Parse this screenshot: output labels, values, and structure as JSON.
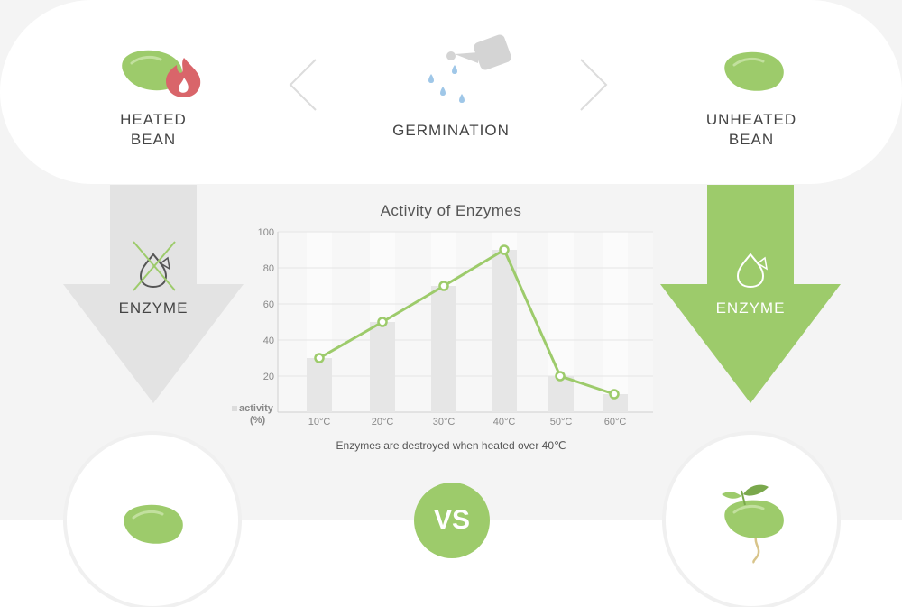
{
  "top": {
    "heated_label": [
      "HEATED",
      "BEAN"
    ],
    "process_label": "GERMINATION",
    "unheated_label": [
      "UNHEATED",
      "BEAN"
    ]
  },
  "left_arrow": {
    "label": "ENZYME"
  },
  "right_arrow": {
    "label": "ENZYME"
  },
  "vs_label": "VS",
  "colors": {
    "green": "#9dcb6b",
    "gray_arrow": "#e3e3e3",
    "flame": "#d9656a",
    "drop": "#9fc7e8"
  },
  "icons": [
    "heated-bean-icon",
    "flame-icon",
    "watering-can-icon",
    "water-drop-icon",
    "bean-icon",
    "enzyme-icon",
    "cross-icon",
    "sprout-icon"
  ],
  "chart_data": {
    "type": "bar+line",
    "title": "Activity of Enzymes",
    "ylabel": "activity (%)",
    "categories": [
      "10°C",
      "20°C",
      "30°C",
      "40°C",
      "50°C",
      "60°C"
    ],
    "values": [
      30,
      50,
      70,
      90,
      20,
      10
    ],
    "ylim": [
      0,
      100
    ],
    "yticks": [
      20,
      40,
      60,
      80,
      100
    ],
    "grid": true,
    "caption": "Enzymes are destroyed when heated over 40℃"
  }
}
